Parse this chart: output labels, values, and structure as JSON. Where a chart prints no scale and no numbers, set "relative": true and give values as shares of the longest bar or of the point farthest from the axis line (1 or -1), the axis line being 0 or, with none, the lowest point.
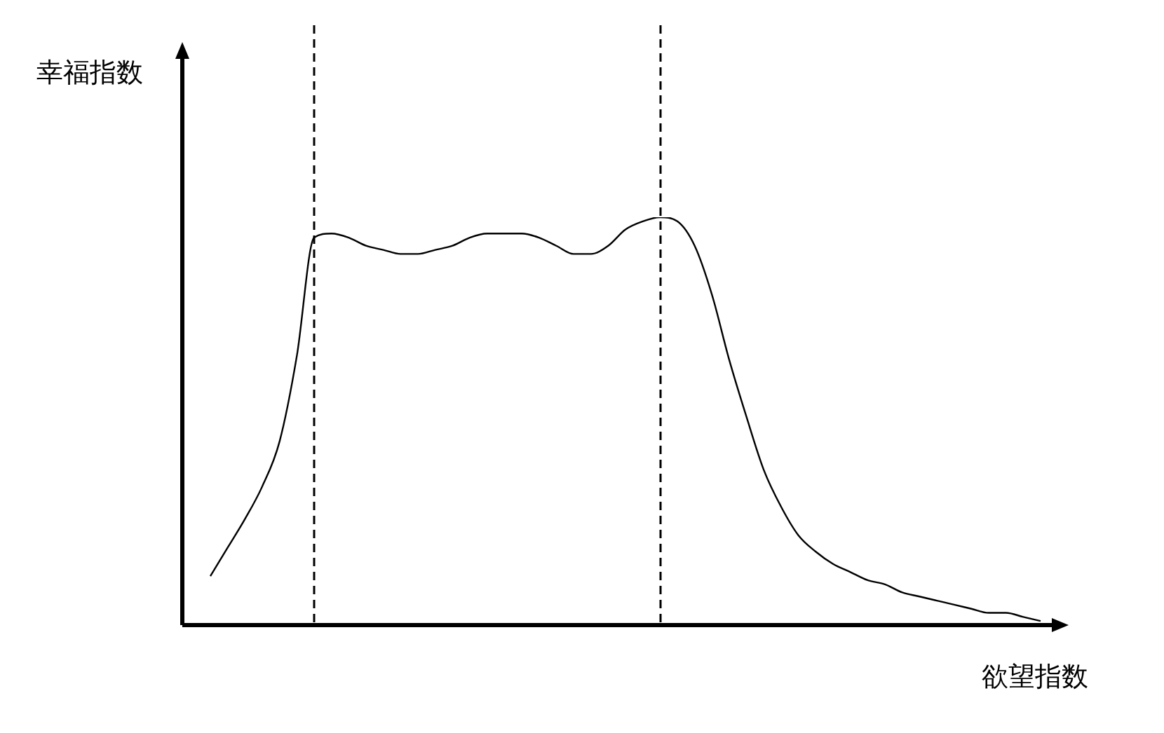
{
  "chart_data": {
    "type": "line",
    "relative": true,
    "xlabel": "欲望指数",
    "annotations": [
      "幸福指数"
    ],
    "categories": [
      null,
      null,
      null,
      null,
      null,
      null,
      null,
      null,
      null,
      null,
      null,
      null,
      null,
      null,
      null,
      null,
      null,
      null,
      null,
      null,
      null,
      null,
      null,
      null,
      null,
      null,
      null,
      null,
      null,
      null,
      null,
      null,
      null,
      null,
      null,
      null,
      null,
      null,
      null,
      null,
      null,
      null,
      null,
      null,
      null,
      null,
      null,
      null,
      null
    ],
    "series": [
      {
        "color": "#000000",
        "values": [
          0.12,
          0.19,
          0.26,
          0.34,
          0.45,
          0.66,
          0.95,
          0.96,
          0.95,
          0.93,
          0.92,
          0.91,
          0.91,
          0.92,
          0.93,
          0.95,
          0.96,
          0.96,
          0.96,
          0.95,
          0.93,
          0.91,
          0.91,
          0.93,
          0.97,
          0.99,
          1,
          0.99,
          0.93,
          0.81,
          0.65,
          0.51,
          0.38,
          0.29,
          0.22,
          0.18,
          0.15,
          0.13,
          0.11,
          0.1,
          0.08,
          0.07,
          0.06,
          0.05,
          0.04,
          0.03,
          0.03,
          0.02,
          0.01
        ]
      }
    ],
    "marker": "none",
    "line_style": "solid",
    "legend": false
  }
}
